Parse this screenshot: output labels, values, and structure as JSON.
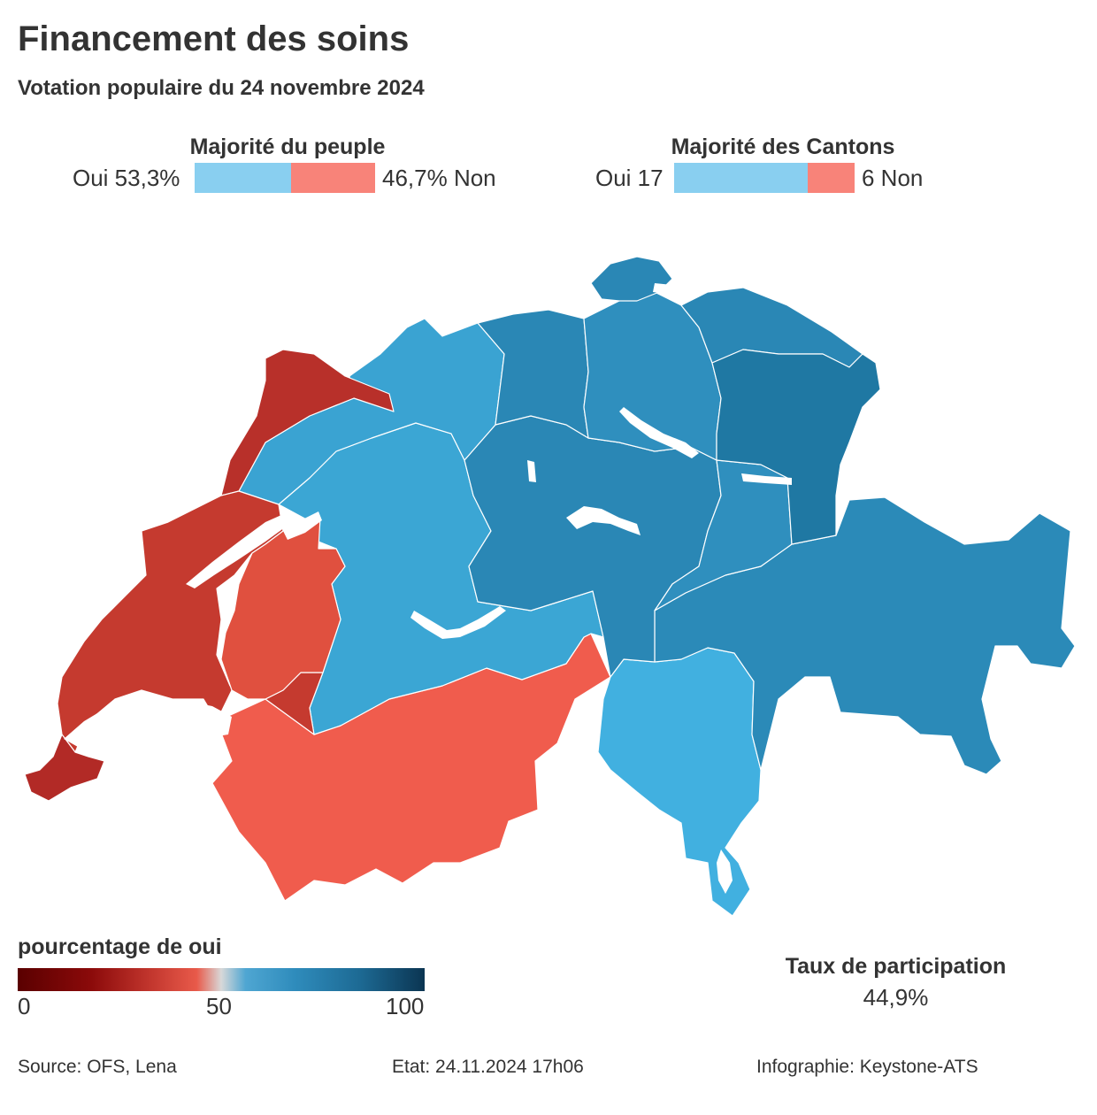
{
  "title": "Financement des soins",
  "subtitle": "Votation populaire du 24 novembre 2024",
  "majorite_peuple": {
    "title": "Majorité du peuple",
    "oui_label": "Oui 53,3%",
    "non_label": "46,7% Non",
    "oui_pct": 53.3,
    "non_pct": 46.7
  },
  "majorite_cantons": {
    "title": "Majorité des Cantons",
    "oui_label": "Oui 17",
    "non_label": "6 Non",
    "oui": 17,
    "non": 6
  },
  "colors": {
    "oui": "#89cff0",
    "non": "#f88379",
    "background": "#ffffff",
    "text": "#333333"
  },
  "legend": {
    "title": "pourcentage de oui",
    "ticks": [
      "0",
      "50",
      "100"
    ]
  },
  "turnout": {
    "title": "Taux de participation",
    "value": "44,9%"
  },
  "footer": {
    "source": "Source: OFS, Lena",
    "etat": "Etat: 24.11.2024 17h06",
    "infographie": "Infographie: Keystone-ATS"
  }
}
